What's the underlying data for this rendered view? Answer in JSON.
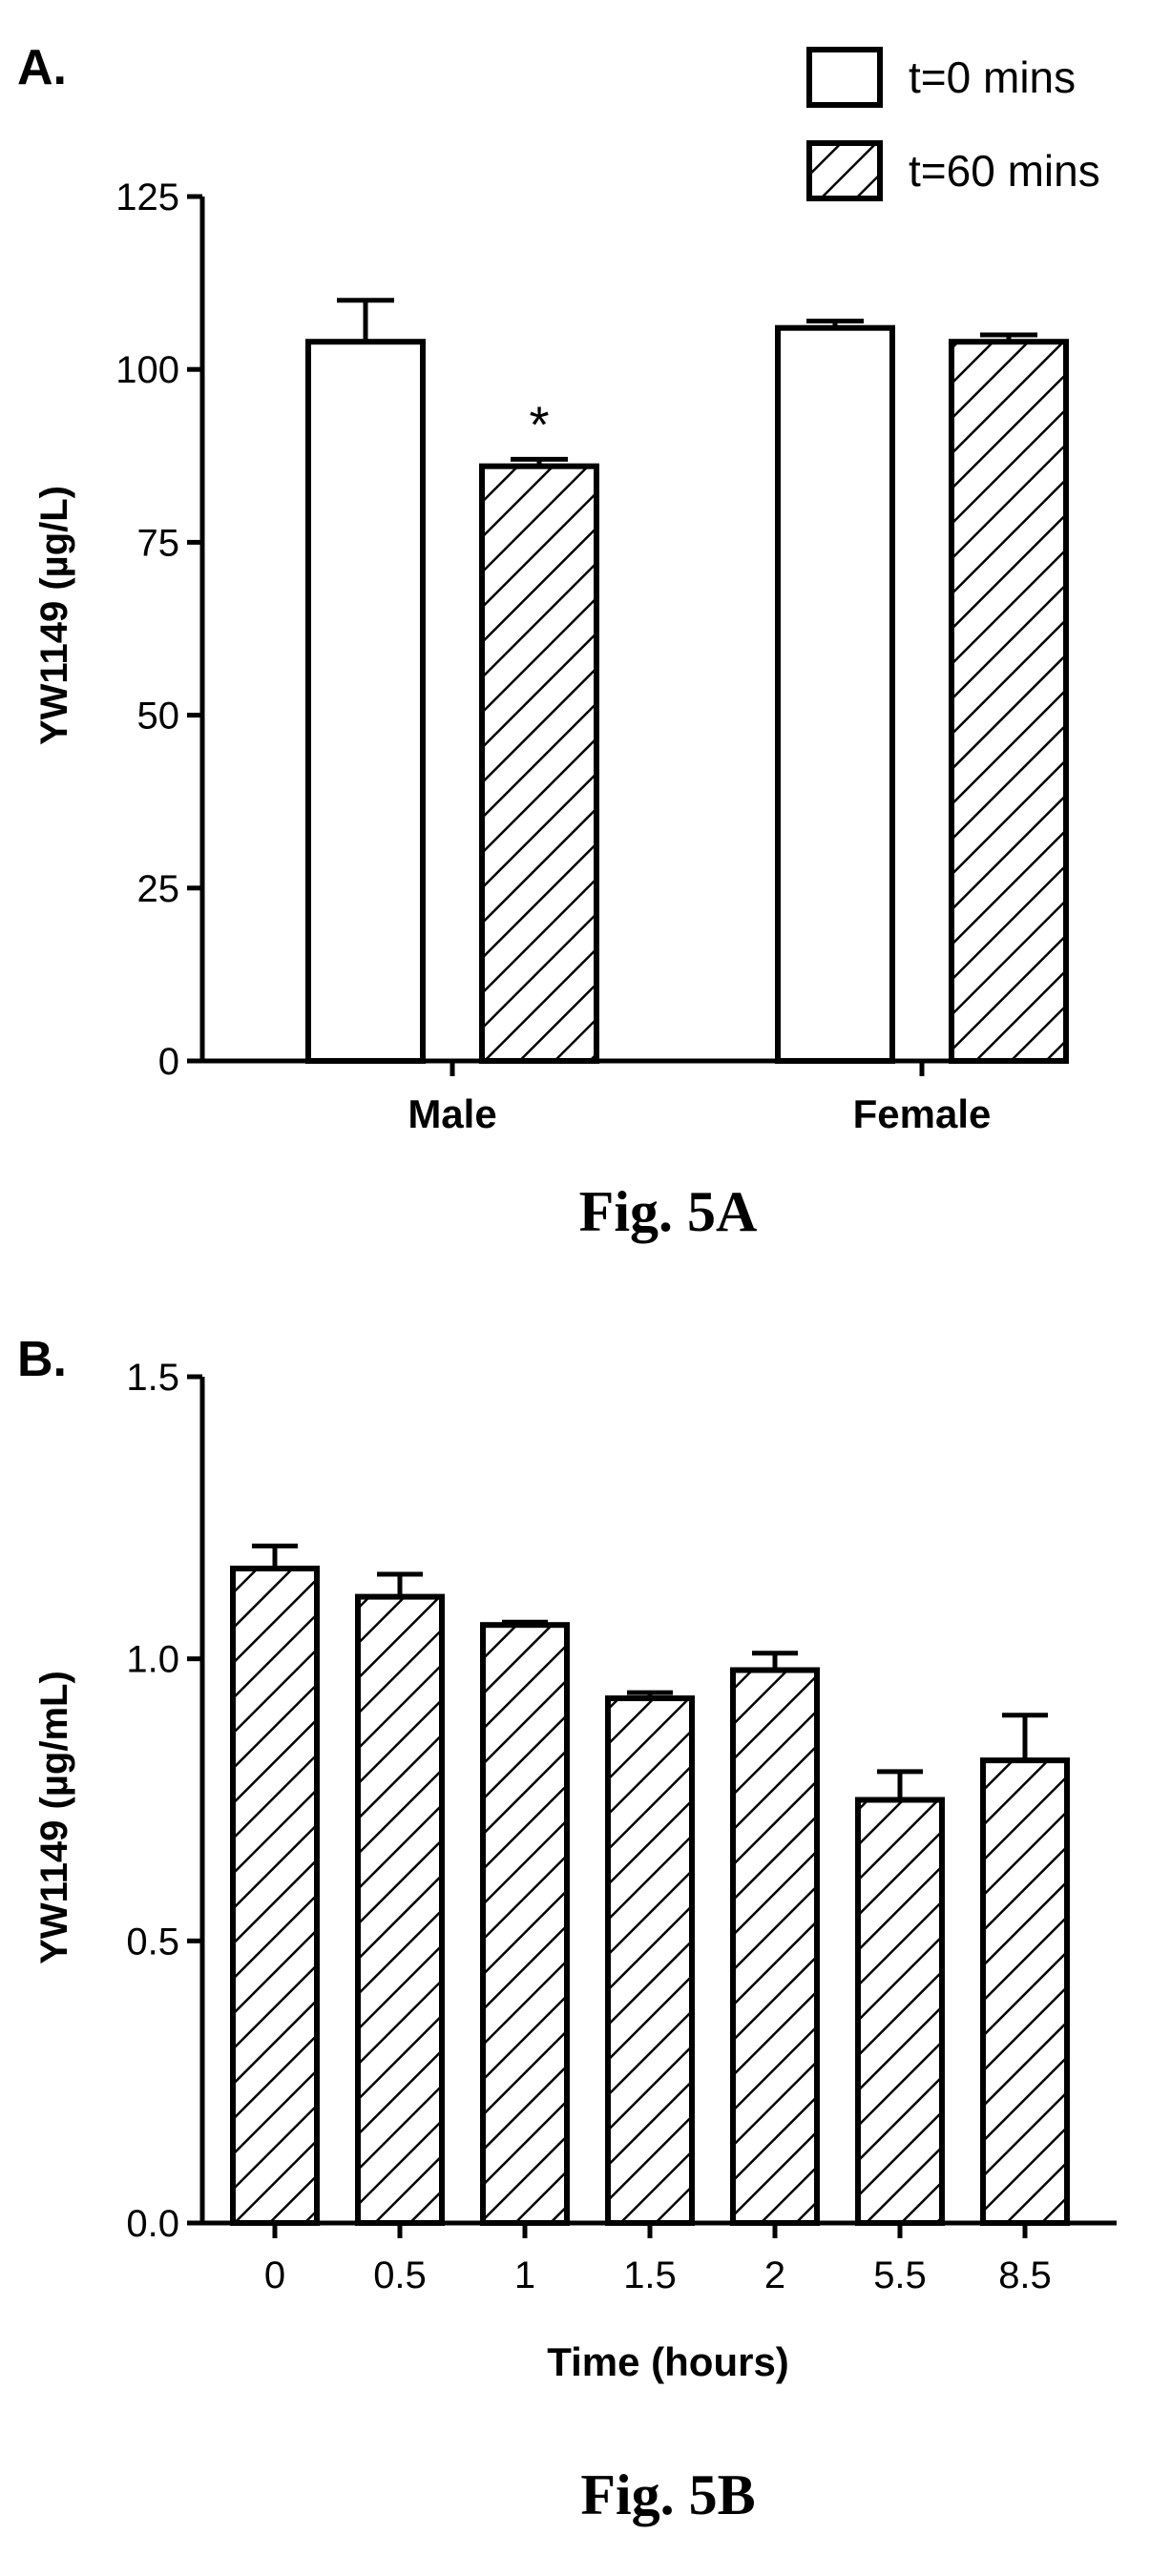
{
  "chart_data": [
    {
      "panel_label": "A.",
      "caption": "Fig. 5A",
      "type": "bar",
      "ylabel": "YW1149 (µg/L)",
      "xlabel": "",
      "ylim": [
        0,
        125
      ],
      "yticks": [
        "0",
        "25",
        "50",
        "75",
        "100",
        "125"
      ],
      "categories": [
        "Male",
        "Female"
      ],
      "legend_placement": "top-right",
      "series": [
        {
          "name": "t=0 mins",
          "pattern": "open",
          "values": [
            104,
            106
          ],
          "errors": [
            6,
            1
          ]
        },
        {
          "name": "t=60 mins",
          "pattern": "hatched",
          "values": [
            86,
            104
          ],
          "errors": [
            1,
            1
          ]
        }
      ],
      "annotations": [
        {
          "text": "*",
          "category": "Male",
          "series": "t=60 mins"
        }
      ]
    },
    {
      "panel_label": "B.",
      "caption": "Fig. 5B",
      "type": "bar",
      "ylabel": "YW1149 (µg/mL)",
      "xlabel": "Time (hours)",
      "ylim": [
        0,
        1.5
      ],
      "yticks": [
        "0.0",
        "0.5",
        "1.0",
        "1.5"
      ],
      "categories": [
        "0",
        "0.5",
        "1",
        "1.5",
        "2",
        "5.5",
        "8.5"
      ],
      "series": [
        {
          "pattern": "hatched",
          "values": [
            1.16,
            1.11,
            1.06,
            0.93,
            0.98,
            0.75,
            0.82
          ],
          "errors": [
            0.04,
            0.04,
            0.005,
            0.01,
            0.03,
            0.05,
            0.08
          ]
        }
      ]
    }
  ],
  "colors": {
    "ink": "#000000",
    "background": "#ffffff"
  }
}
